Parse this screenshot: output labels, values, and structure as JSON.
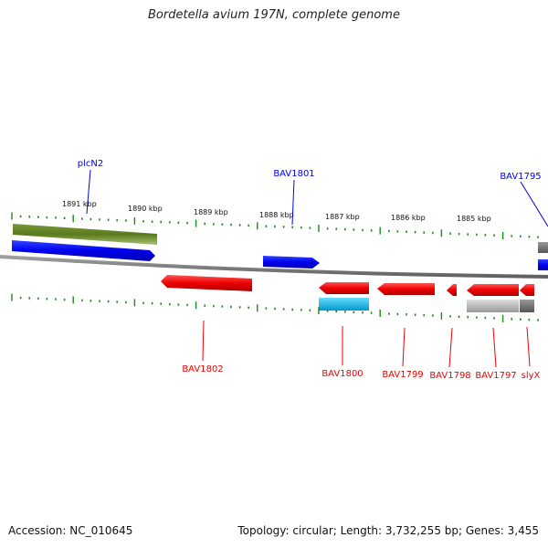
{
  "title": "Bordetella avium 197N, complete genome",
  "footer": {
    "accession": "Accession: NC_010645",
    "summary": "Topology: circular; Length: 3,732,255 bp; Genes: 3,455"
  },
  "colors": {
    "forward_gene": "#0000ee",
    "reverse_gene": "#ee0000",
    "gc_bar": "#5a7a1e",
    "tick": "#1a8a1a",
    "backbone": "#808080"
  },
  "scale_labels": [
    "1891 kbp",
    "1890 kbp",
    "1889 kbp",
    "1888 kbp",
    "1887 kbp",
    "1886 kbp",
    "1885 kbp"
  ],
  "genes_top": [
    {
      "name": "plcN2"
    },
    {
      "name": "BAV1801"
    },
    {
      "name": "BAV1795"
    }
  ],
  "genes_bottom": [
    {
      "name": "BAV1802"
    },
    {
      "name": "BAV1800"
    },
    {
      "name": "BAV1799"
    },
    {
      "name": "BAV1798"
    },
    {
      "name": "BAV1797"
    },
    {
      "name": "slyX"
    }
  ]
}
